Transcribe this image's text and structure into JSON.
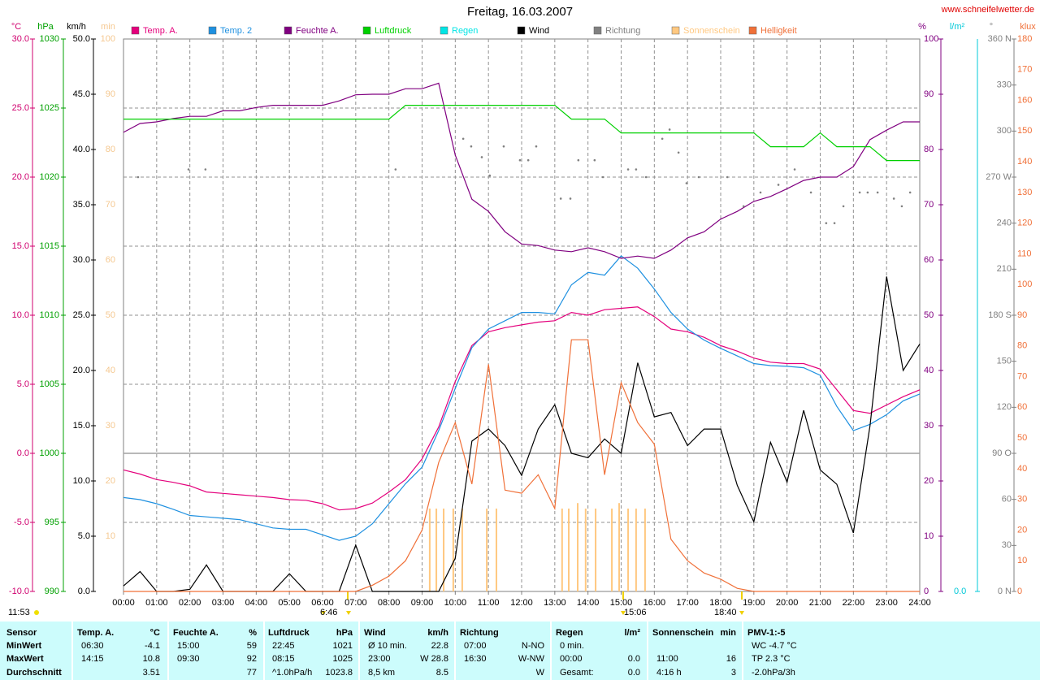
{
  "chart_data": {
    "type": "line",
    "title": "Freitag, 16.03.2007",
    "source": "www.schneifelwetter.de",
    "grid": true,
    "xlim": [
      0,
      24
    ],
    "xticks": [
      {
        "value": 0,
        "label": "00:00"
      },
      {
        "value": 1,
        "label": "01:00"
      },
      {
        "value": 2,
        "label": "02:00"
      },
      {
        "value": 3,
        "label": "03:00"
      },
      {
        "value": 4,
        "label": "04:00"
      },
      {
        "value": 5,
        "label": "05:00"
      },
      {
        "value": 6,
        "label": "06:00"
      },
      {
        "value": 7,
        "label": "07:00"
      },
      {
        "value": 8,
        "label": "08:00"
      },
      {
        "value": 9,
        "label": "09:00"
      },
      {
        "value": 10,
        "label": "10:00"
      },
      {
        "value": 11,
        "label": "11:00"
      },
      {
        "value": 12,
        "label": "12:00"
      },
      {
        "value": 13,
        "label": "13:00"
      },
      {
        "value": 14,
        "label": "14:00"
      },
      {
        "value": 15,
        "label": "15:00"
      },
      {
        "value": 16,
        "label": "16:00"
      },
      {
        "value": 17,
        "label": "17:00"
      },
      {
        "value": 18,
        "label": "18:00"
      },
      {
        "value": 19,
        "label": "19:00"
      },
      {
        "value": 20,
        "label": "20:00"
      },
      {
        "value": 21,
        "label": "21:00"
      },
      {
        "value": 22,
        "label": "22:00"
      },
      {
        "value": 23,
        "label": "23:00"
      },
      {
        "value": 24,
        "label": "24:00"
      }
    ],
    "x": [
      0,
      0.5,
      1,
      1.5,
      2,
      2.5,
      3,
      3.5,
      4,
      4.5,
      5,
      5.5,
      6,
      6.5,
      7,
      7.5,
      8,
      8.5,
      9,
      9.5,
      10,
      10.5,
      11,
      11.5,
      12,
      12.5,
      13,
      13.5,
      14,
      14.5,
      15,
      15.5,
      16,
      16.5,
      17,
      17.5,
      18,
      18.5,
      19,
      19.5,
      20,
      20.5,
      21,
      21.5,
      22,
      22.5,
      23,
      23.5,
      24
    ],
    "axes": {
      "y": {
        "unit": "°C",
        "color": "#d0006f",
        "lim": [
          -10,
          30
        ],
        "ticks": [
          {
            "value": -10,
            "label": "-10.0"
          },
          {
            "value": -5,
            "label": "-5.0"
          },
          {
            "value": 0,
            "label": "0.0"
          },
          {
            "value": 5,
            "label": "5.0"
          },
          {
            "value": 10,
            "label": "10.0"
          },
          {
            "value": 15,
            "label": "15.0"
          },
          {
            "value": 20,
            "label": "20.0"
          },
          {
            "value": 25,
            "label": "25.0"
          },
          {
            "value": 30,
            "label": "30.0"
          }
        ]
      },
      "y2": {
        "unit": "hPa",
        "color": "#00a000",
        "lim": [
          990,
          1030
        ],
        "ticks": [
          990,
          995,
          1000,
          1005,
          1010,
          1015,
          1020,
          1025,
          1030
        ]
      },
      "y3": {
        "unit": "km/h",
        "color": "#000000",
        "lim": [
          0,
          50
        ],
        "ticks": [
          {
            "value": 0,
            "label": "0.0"
          },
          {
            "value": 5,
            "label": "5.0"
          },
          {
            "value": 10,
            "label": "10.0"
          },
          {
            "value": 15,
            "label": "15.0"
          },
          {
            "value": 20,
            "label": "20.0"
          },
          {
            "value": 25,
            "label": "25.0"
          },
          {
            "value": 30,
            "label": "30.0"
          },
          {
            "value": 35,
            "label": "35.0"
          },
          {
            "value": 40,
            "label": "40.0"
          },
          {
            "value": 45,
            "label": "45.0"
          },
          {
            "value": 50,
            "label": "50.0"
          }
        ]
      },
      "y4": {
        "unit": "min",
        "color": "#f5c890",
        "lim": [
          0,
          100
        ],
        "ticks": [
          10,
          20,
          30,
          40,
          50,
          60,
          70,
          80,
          90,
          100
        ]
      },
      "y5": {
        "unit": "%",
        "color": "#800080",
        "lim": [
          0,
          100
        ],
        "ticks": [
          0,
          10,
          20,
          30,
          40,
          50,
          60,
          70,
          80,
          90,
          100
        ]
      },
      "y6": {
        "unit": "l/m²",
        "color": "#00c8d8",
        "lim": [
          0,
          10
        ],
        "ticks": [
          {
            "value": 0,
            "label": "0.0"
          }
        ]
      },
      "y7": {
        "unit": "°",
        "color": "#808080",
        "lim": [
          0,
          360
        ],
        "ticks": [
          {
            "value": 0,
            "label": "0 N"
          },
          30,
          60,
          {
            "value": 90,
            "label": "90 O"
          },
          120,
          150,
          {
            "value": 180,
            "label": "180 S"
          },
          210,
          240,
          {
            "value": 270,
            "label": "270 W"
          },
          300,
          330,
          {
            "value": 360,
            "label": "360 N"
          }
        ]
      },
      "y8": {
        "unit": "klux",
        "color": "#f07038",
        "lim": [
          0,
          180
        ],
        "ticks": [
          0,
          10,
          20,
          30,
          40,
          50,
          60,
          70,
          80,
          90,
          100,
          110,
          120,
          130,
          140,
          150,
          160,
          170,
          180
        ]
      }
    },
    "series": [
      {
        "name": "Temp. A.",
        "color": "#e4007c",
        "axis": "y",
        "type": "line",
        "values": [
          -1.2,
          -1.5,
          -1.9,
          -2.1,
          -2.35,
          -2.8,
          -2.9,
          -3.0,
          -3.1,
          -3.2,
          -3.35,
          -3.4,
          -3.65,
          -4.1,
          -4.0,
          -3.6,
          -2.8,
          -1.9,
          -0.4,
          1.9,
          5.2,
          7.8,
          8.8,
          9.1,
          9.3,
          9.5,
          9.6,
          10.2,
          10.0,
          10.4,
          10.5,
          10.6,
          9.9,
          9.0,
          8.8,
          8.4,
          7.8,
          7.4,
          6.9,
          6.6,
          6.5,
          6.5,
          6.1,
          4.6,
          3.1,
          2.9,
          3.5,
          4.1,
          4.6
        ]
      },
      {
        "name": "Temp. 2",
        "color": "#1e90e0",
        "axis": "y",
        "type": "line",
        "values": [
          -3.2,
          -3.35,
          -3.65,
          -4.05,
          -4.5,
          -4.6,
          -4.7,
          -4.8,
          -5.1,
          -5.4,
          -5.5,
          -5.5,
          -5.9,
          -6.3,
          -6.0,
          -5.1,
          -3.65,
          -2.2,
          -1.0,
          1.65,
          4.7,
          7.65,
          9.0,
          9.6,
          10.2,
          10.2,
          10.1,
          12.2,
          13.1,
          12.9,
          14.3,
          13.4,
          11.9,
          10.2,
          9.0,
          8.2,
          7.6,
          7.05,
          6.5,
          6.35,
          6.3,
          6.2,
          5.65,
          3.4,
          1.65,
          2.1,
          2.8,
          3.8,
          4.3
        ]
      },
      {
        "name": "Feuchte A.",
        "color": "#800080",
        "axis": "y5",
        "type": "line",
        "values": [
          83.1,
          84.7,
          85,
          85.6,
          86,
          86,
          87,
          87,
          87.6,
          88,
          88,
          88,
          88,
          88.8,
          89.9,
          90,
          90,
          91,
          91,
          92,
          79,
          71,
          68.8,
          65.1,
          62.9,
          62.6,
          61.8,
          61.5,
          62.2,
          61.5,
          60.3,
          60.7,
          60.3,
          61.8,
          64,
          65.1,
          67.4,
          68.8,
          70.6,
          71.5,
          72.9,
          74.4,
          75,
          75,
          76.9,
          81.8,
          83.5,
          85,
          85
        ]
      },
      {
        "name": "Luftdruck",
        "color": "#00d000",
        "axis": "y2",
        "type": "line",
        "values": [
          1024.2,
          1024.2,
          1024.2,
          1024.2,
          1024.2,
          1024.2,
          1024.2,
          1024.2,
          1024.2,
          1024.2,
          1024.2,
          1024.2,
          1024.2,
          1024.2,
          1024.2,
          1024.2,
          1024.2,
          1025.2,
          1025.2,
          1025.2,
          1025.2,
          1025.2,
          1025.2,
          1025.2,
          1025.2,
          1025.2,
          1025.2,
          1024.2,
          1024.2,
          1024.2,
          1023.2,
          1023.2,
          1023.2,
          1023.2,
          1023.2,
          1023.2,
          1023.2,
          1023.2,
          1023.2,
          1022.2,
          1022.2,
          1022.2,
          1023.2,
          1022.2,
          1022.2,
          1022.2,
          1021.2,
          1021.2,
          1021.2
        ]
      },
      {
        "name": "Regen",
        "color": "#00e5e5",
        "axis": "y6",
        "type": "line"
      },
      {
        "name": "Wind",
        "color": "#000000",
        "axis": "y3",
        "type": "line",
        "values": [
          0.5,
          1.8,
          0,
          0,
          0.2,
          2.4,
          0,
          0,
          0,
          0,
          1.6,
          0,
          0,
          0,
          4.2,
          0,
          0,
          0,
          0,
          0,
          3,
          13.6,
          14.7,
          13.2,
          10.5,
          14.7,
          16.9,
          12.5,
          12.1,
          13.8,
          12.5,
          20.7,
          15.8,
          16.2,
          13.2,
          14.7,
          14.7,
          9.6,
          6.3,
          13.5,
          9.9,
          16.4,
          11,
          9.7,
          5.3,
          15,
          28.5,
          20,
          22.4
        ]
      },
      {
        "name": "Richtung",
        "color": "#808080",
        "axis": "y7",
        "type": "scatter",
        "x": [
          0.44,
          1.96,
          2.47,
          8.2,
          10.24,
          10.48,
          10.8,
          11.04,
          11.46,
          11.95,
          12.2,
          12.44,
          13.18,
          13.47,
          13.71,
          14.2,
          14.45,
          15.21,
          15.45,
          15.75,
          16.24,
          16.46,
          16.73,
          16.97,
          17.34,
          18.2,
          18.69,
          19.2,
          19.74,
          20.23,
          20.72,
          21.18,
          21.43,
          21.7,
          22.19,
          22.43,
          22.73,
          23.22,
          23.46,
          23.71
        ],
        "values": [
          270,
          275,
          275,
          275,
          295,
          290,
          283,
          271,
          290,
          281,
          281,
          290,
          256,
          256,
          281,
          281,
          270,
          275,
          275,
          270,
          295,
          301,
          286,
          266,
          270,
          270,
          251,
          260,
          265,
          275,
          260,
          240,
          240,
          251,
          260,
          260,
          260,
          256,
          251,
          260
        ]
      },
      {
        "name": "Sonnenschein",
        "color": "#ffc880",
        "axis": "y4",
        "type": "bar",
        "x": [
          9.23,
          9.43,
          9.65,
          9.94,
          10.21,
          10.95,
          11.24,
          13.22,
          13.42,
          13.69,
          13.93,
          14.23,
          14.72,
          14.94,
          15.21,
          15.45,
          15.72
        ],
        "values": [
          15,
          15,
          15,
          15,
          15,
          15,
          15,
          15,
          15,
          16,
          15,
          15,
          15,
          16,
          15,
          15,
          15
        ]
      },
      {
        "name": "Helligkeit",
        "color": "#f07038",
        "axis": "y8",
        "type": "line",
        "values": [
          0,
          0,
          0,
          0,
          0,
          0,
          0,
          0,
          0,
          0,
          0,
          0,
          0,
          0,
          0,
          2,
          5,
          10,
          20,
          42,
          55,
          35,
          74,
          33,
          32,
          38,
          27,
          82,
          82,
          38,
          68,
          55,
          48,
          17,
          10,
          6,
          4,
          1,
          0,
          0,
          0,
          0,
          0,
          0,
          0,
          0,
          0,
          0,
          0
        ]
      }
    ],
    "annotations": [
      "11:53",
      "6:46",
      "15:06",
      "18:40"
    ]
  },
  "table": {
    "columns": [
      {
        "name": "Sensor"
      },
      {
        "name": "Temp. A.",
        "unit": "°C"
      },
      {
        "name": "Feuchte A.",
        "unit": "%"
      },
      {
        "name": "Luftdruck",
        "unit": "hPa"
      },
      {
        "name": "Wind",
        "unit": "km/h"
      },
      {
        "name": "Richtung"
      },
      {
        "name": "Regen",
        "unit": "l/m²"
      },
      {
        "name": "Sonnenschein",
        "unit": "min"
      },
      {
        "name": "PMV-1:-5"
      }
    ],
    "rows": [
      {
        "label": "MinWert",
        "cells": [
          {
            "left": "06:30",
            "right": "-4.1"
          },
          {
            "left": "15:00",
            "right": "59"
          },
          {
            "left": "22:45",
            "right": "1021"
          },
          {
            "left": "Ø 10 min.",
            "right": "22.8"
          },
          {
            "left": "07:00",
            "right": "N-NO"
          },
          {
            "left": "0 min."
          },
          {},
          {
            "left": "WC -4.7 °C"
          }
        ]
      },
      {
        "label": "MaxWert",
        "cells": [
          {
            "left": "14:15",
            "right": "10.8"
          },
          {
            "left": "09:30",
            "right": "92"
          },
          {
            "left": "08:15",
            "right": "1025"
          },
          {
            "left": "23:00",
            "right": "W 28.8"
          },
          {
            "left": "16:30",
            "right": "W-NW"
          },
          {
            "left": "00:00",
            "right": "0.0"
          },
          {
            "left": "11:00",
            "right": "16"
          },
          {
            "left": "TP 2.3 °C"
          }
        ]
      },
      {
        "label": "Durchschnitt",
        "cells": [
          {
            "right": "3.51"
          },
          {
            "right": "77"
          },
          {
            "left": "^1.0hPa/h",
            "right": "1023.8"
          },
          {
            "left": "8,5 km",
            "right": "8.5"
          },
          {
            "right": "W"
          },
          {
            "left": "Gesamt:",
            "right": "0.0"
          },
          {
            "left": "4:16 h",
            "right": "3"
          },
          {
            "left": "-2.0hPa/3h"
          }
        ]
      }
    ]
  }
}
